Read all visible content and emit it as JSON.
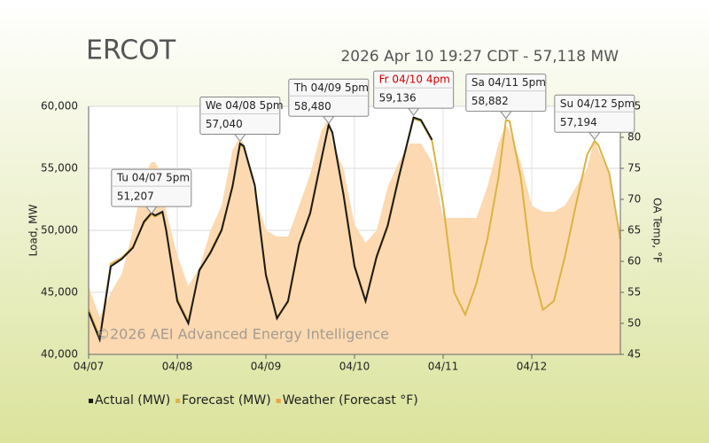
{
  "chart_data": {
    "type": "line",
    "title": "ERCOT",
    "subtitle": "2026 Apr 10 19:27 CDT - 57,118 MW",
    "watermark": "©2026 AEI Advanced Energy Intelligence",
    "y_label": "Load, MW",
    "y2_label": "OA Temp, °F",
    "x": [
      0,
      3,
      6,
      9,
      12,
      15,
      17,
      18,
      20,
      21,
      24,
      27,
      30,
      33,
      36,
      39,
      41,
      42,
      45,
      48,
      51,
      54,
      57,
      60,
      63,
      65,
      66,
      69,
      72,
      75,
      78,
      81,
      84,
      87,
      88,
      90,
      93,
      96,
      99,
      102,
      105,
      108,
      111,
      113,
      114,
      117,
      120,
      123,
      126,
      129,
      132,
      135,
      137,
      138,
      141,
      144
    ],
    "xlim": [
      0,
      144
    ],
    "xticks": [
      {
        "value": 0,
        "label": "04/07"
      },
      {
        "value": 24,
        "label": "04/08"
      },
      {
        "value": 48,
        "label": "04/09"
      },
      {
        "value": 72,
        "label": "04/10"
      },
      {
        "value": 96,
        "label": "04/11"
      },
      {
        "value": 120,
        "label": "04/12"
      }
    ],
    "ylim": [
      40000,
      60000
    ],
    "yticks": [
      {
        "value": 40000,
        "label": "40,000"
      },
      {
        "value": 45000,
        "label": "45,000"
      },
      {
        "value": 50000,
        "label": "50,000"
      },
      {
        "value": 55000,
        "label": "55,000"
      },
      {
        "value": 60000,
        "label": "60,000"
      }
    ],
    "y2lim": [
      45,
      85
    ],
    "y2ticks": [
      45,
      50,
      55,
      60,
      65,
      70,
      75,
      80,
      85
    ],
    "grid": true,
    "series": [
      {
        "name": "Weather (Forecast °F)",
        "color": "#fcd9b0",
        "fill": true,
        "axis": "y2",
        "values": [
          56,
          51,
          55,
          58,
          65,
          74,
          76,
          76,
          74,
          68,
          61,
          56,
          59,
          65,
          69,
          78,
          80,
          79,
          71,
          65,
          64,
          64,
          69,
          74,
          81,
          83,
          79,
          75,
          66,
          63,
          65,
          72,
          76,
          79,
          79,
          79,
          76,
          67,
          67,
          67,
          67,
          72,
          79,
          82,
          81,
          76,
          69,
          68,
          68,
          69,
          72,
          75,
          80,
          78,
          74,
          64
        ]
      },
      {
        "name": "Forecast (MW)",
        "color": "#d9b442",
        "values": [
          43600,
          41400,
          47300,
          47800,
          48700,
          50600,
          51300,
          51100,
          51400,
          50100,
          44500,
          42600,
          46700,
          48300,
          50100,
          53500,
          56900,
          56700,
          53700,
          46500,
          43000,
          44200,
          48800,
          51300,
          55600,
          58600,
          57800,
          53000,
          47200,
          44300,
          47800,
          50300,
          54200,
          57800,
          59000,
          58800,
          57200,
          52100,
          45000,
          43200,
          45700,
          49300,
          54300,
          58900,
          58800,
          54300,
          47100,
          43600,
          44300,
          47900,
          52100,
          56100,
          57200,
          56900,
          54600,
          49300
        ]
      },
      {
        "name": "Actual (MW)",
        "color": "#1a1a1a",
        "values": [
          43400,
          41200,
          47100,
          47700,
          48600,
          50700,
          51400,
          51200,
          51500,
          50000,
          44300,
          42500,
          46800,
          48200,
          50000,
          53600,
          57000,
          56800,
          53600,
          46400,
          42900,
          44300,
          48900,
          51400,
          55700,
          58500,
          57900,
          52900,
          47100,
          44300,
          47900,
          50400,
          54300,
          57900,
          59100,
          58900,
          57300,
          null,
          null,
          null,
          null,
          null,
          null,
          null,
          null,
          null,
          null,
          null,
          null,
          null,
          null,
          null,
          null,
          null,
          null,
          null
        ]
      }
    ],
    "legend_order": [
      2,
      1,
      0
    ],
    "annotations": [
      {
        "x": 17,
        "day": "Tu 04/07 5pm",
        "value": 51207,
        "label": "51,207"
      },
      {
        "x": 41,
        "day": "We 04/08 5pm",
        "value": 57040,
        "label": "57,040"
      },
      {
        "x": 65,
        "day": "Th 04/09 5pm",
        "value": 58480,
        "label": "58,480"
      },
      {
        "x": 88,
        "day": "Fr 04/10 4pm",
        "value": 59136,
        "label": "59,136",
        "day_color": "#cc0000"
      },
      {
        "x": 113,
        "day": "Sa 04/11 5pm",
        "value": 58882,
        "label": "58,882"
      },
      {
        "x": 137,
        "day": "Su 04/12 5pm",
        "value": 57194,
        "label": "57,194"
      }
    ]
  }
}
